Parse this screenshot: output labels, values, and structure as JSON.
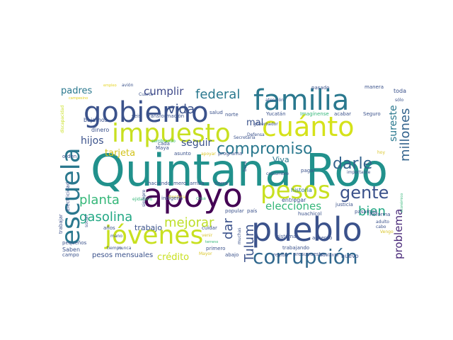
{
  "palette": [
    "#440154",
    "#3b528b",
    "#21918c",
    "#5ec962",
    "#fde725"
  ],
  "words": [
    {
      "text": "Quintana Roo",
      "color": "#21918c"
    },
    {
      "text": "apoyo",
      "color": "#440154"
    },
    {
      "text": "pueblo",
      "color": "#3b528b"
    },
    {
      "text": "jóvenes",
      "color": "#c8e020"
    },
    {
      "text": "familia",
      "color": "#2a788e"
    },
    {
      "text": "gobierno",
      "color": "#3b528b"
    },
    {
      "text": "impuesto",
      "color": "#c8e020"
    },
    {
      "text": "cuánto",
      "color": "#d5e21a"
    },
    {
      "text": "escuela",
      "color": "#2a788e"
    },
    {
      "text": "pesos",
      "color": "#c8e020"
    },
    {
      "text": "corrupción",
      "color": "#31688e"
    },
    {
      "text": "gente",
      "color": "#3b528b"
    },
    {
      "text": "compromiso",
      "color": "#2a788e"
    },
    {
      "text": "planta",
      "color": "#35b779"
    },
    {
      "text": "gasolina",
      "color": "#22a884"
    },
    {
      "text": "mejorar",
      "color": "#bddf26"
    },
    {
      "text": "darle",
      "color": "#33638d"
    },
    {
      "text": "vida",
      "color": "#3b528b"
    },
    {
      "text": "federal",
      "color": "#2a788e"
    },
    {
      "text": "millones",
      "color": "#33638d"
    },
    {
      "text": "Tulum",
      "color": "#3b528b"
    },
    {
      "text": "dar",
      "color": "#3b528b"
    },
    {
      "text": "bien",
      "color": "#22a884"
    },
    {
      "text": "problema",
      "color": "#482878"
    },
    {
      "text": "cumplir",
      "color": "#3e4989"
    },
    {
      "text": "elecciones",
      "color": "#35b779"
    },
    {
      "text": "sureste",
      "color": "#2a788e"
    },
    {
      "text": "padres",
      "color": "#2a788e"
    },
    {
      "text": "seguir",
      "color": "#3b528b"
    },
    {
      "text": "hijos",
      "color": "#3b528b"
    },
    {
      "text": "tarjeta",
      "color": "#d2c31c"
    },
    {
      "text": "mal",
      "color": "#3b528b"
    },
    {
      "text": "crédito",
      "color": "#c8e020"
    },
    {
      "text": "trabajo",
      "color": "#3b528b"
    },
    {
      "text": "Viva",
      "color": "#2a788e"
    },
    {
      "text": "historia",
      "color": "#2a788e"
    },
    {
      "text": "nuevo",
      "color": "#3b528b"
    },
    {
      "text": "pesos mensuales",
      "color": "#3b528b"
    },
    {
      "text": "entregar",
      "color": "#3b528b"
    },
    {
      "text": "justicia",
      "color": "#3b528b"
    },
    {
      "text": "Saben",
      "color": "#3b528b"
    },
    {
      "text": "campesino",
      "color": "#e5d31f"
    },
    {
      "text": "empleo",
      "color": "#e5d31f"
    },
    {
      "text": "avión",
      "color": "#3b528b"
    },
    {
      "text": "Cuarta",
      "color": "#3b528b"
    },
    {
      "text": "transformación",
      "color": "#3b528b"
    },
    {
      "text": "seis",
      "color": "#3b528b"
    },
    {
      "text": "salud",
      "color": "#3b528b"
    },
    {
      "text": "norte",
      "color": "#3b528b"
    },
    {
      "text": "bajamos",
      "color": "#3b528b"
    },
    {
      "text": "dinero",
      "color": "#3b528b"
    },
    {
      "text": "cada",
      "color": "#3b528b"
    },
    {
      "text": "sembrando",
      "color": "#35b779"
    },
    {
      "text": "Maya",
      "color": "#3b528b"
    },
    {
      "text": "Defensa",
      "color": "#3b528b"
    },
    {
      "text": "gobernador",
      "color": "#3b528b"
    },
    {
      "text": "Secretaría",
      "color": "#3b528b"
    },
    {
      "text": "costumbre",
      "color": "#3b528b"
    },
    {
      "text": "atención",
      "color": "#3b528b"
    },
    {
      "text": "Imagínense",
      "color": "#35b779"
    },
    {
      "text": "Yucatán",
      "color": "#3b528b"
    },
    {
      "text": "acabar",
      "color": "#3b528b"
    },
    {
      "text": "Seguro",
      "color": "#3b528b"
    },
    {
      "text": "pasado",
      "color": "#3b528b"
    },
    {
      "text": "manera",
      "color": "#3b528b"
    },
    {
      "text": "toda",
      "color": "#3b528b"
    },
    {
      "text": "sólo",
      "color": "#3b528b"
    },
    {
      "text": "adulto",
      "color": "#3b528b"
    },
    {
      "text": "cabo",
      "color": "#3b528b"
    },
    {
      "text": "Reforma",
      "color": "#3b528b"
    },
    {
      "text": "pasamos",
      "color": "#3b528b"
    },
    {
      "text": "Vengo",
      "color": "#dac62a"
    },
    {
      "text": "económico",
      "color": "#35b779"
    },
    {
      "text": "importante",
      "color": "#3b528b"
    },
    {
      "text": "hoy",
      "color": "#dac62a"
    },
    {
      "text": "pagar",
      "color": "#3b528b"
    },
    {
      "text": "beca",
      "color": "#3b528b"
    },
    {
      "text": "programa",
      "color": "#3b528b"
    },
    {
      "text": "apoyar",
      "color": "#dac62a"
    },
    {
      "text": "asunto",
      "color": "#3b528b"
    },
    {
      "text": "orden",
      "color": "#3b528b"
    },
    {
      "text": "Electricidad",
      "color": "#3b528b"
    },
    {
      "text": "años",
      "color": "#3b528b"
    },
    {
      "text": "mano",
      "color": "#3b528b"
    },
    {
      "text": "haciendo",
      "color": "#3b528b"
    },
    {
      "text": "mero",
      "color": "#3b528b"
    },
    {
      "text": "arriba",
      "color": "#3b528b"
    },
    {
      "text": "tierra",
      "color": "#3b528b"
    },
    {
      "text": "ejidatario",
      "color": "#35b779"
    },
    {
      "text": "siempre",
      "color": "#3b528b"
    },
    {
      "text": "frontera",
      "color": "#dac62a"
    },
    {
      "text": "indígena",
      "color": "#3b528b"
    },
    {
      "text": "cosa",
      "color": "#35b779"
    },
    {
      "text": "cuidar",
      "color": "#3b528b"
    },
    {
      "text": "venir",
      "color": "#dac62a"
    },
    {
      "text": "popular",
      "color": "#3b528b"
    },
    {
      "text": "país",
      "color": "#3b528b"
    },
    {
      "text": "huachicol",
      "color": "#3b528b"
    },
    {
      "text": "muchas",
      "color": "#3b528b"
    },
    {
      "text": "acuerdo",
      "color": "#3b528b"
    },
    {
      "text": "sistema",
      "color": "#3b528b"
    },
    {
      "text": "primero",
      "color": "#3b528b"
    },
    {
      "text": "Mayor",
      "color": "#dac62a"
    },
    {
      "text": "abajo",
      "color": "#3b528b"
    },
    {
      "text": "recibir",
      "color": "#3b528b"
    },
    {
      "text": "presupuesto",
      "color": "#3b528b"
    },
    {
      "text": "adelante",
      "color": "#3b528b"
    },
    {
      "text": "trabajando",
      "color": "#3b528b"
    },
    {
      "text": "social",
      "color": "#3b528b"
    },
    {
      "text": "pequeños",
      "color": "#3b528b"
    },
    {
      "text": "campo",
      "color": "#3b528b"
    },
    {
      "text": "discapacidad",
      "color": "#c8e020"
    },
    {
      "text": "nunca",
      "color": "#3b528b"
    },
    {
      "text": "tiempo",
      "color": "#3b528b"
    },
    {
      "text": "terreno",
      "color": "#35b779"
    },
    {
      "text": "trabajar",
      "color": "#3b528b"
    }
  ]
}
